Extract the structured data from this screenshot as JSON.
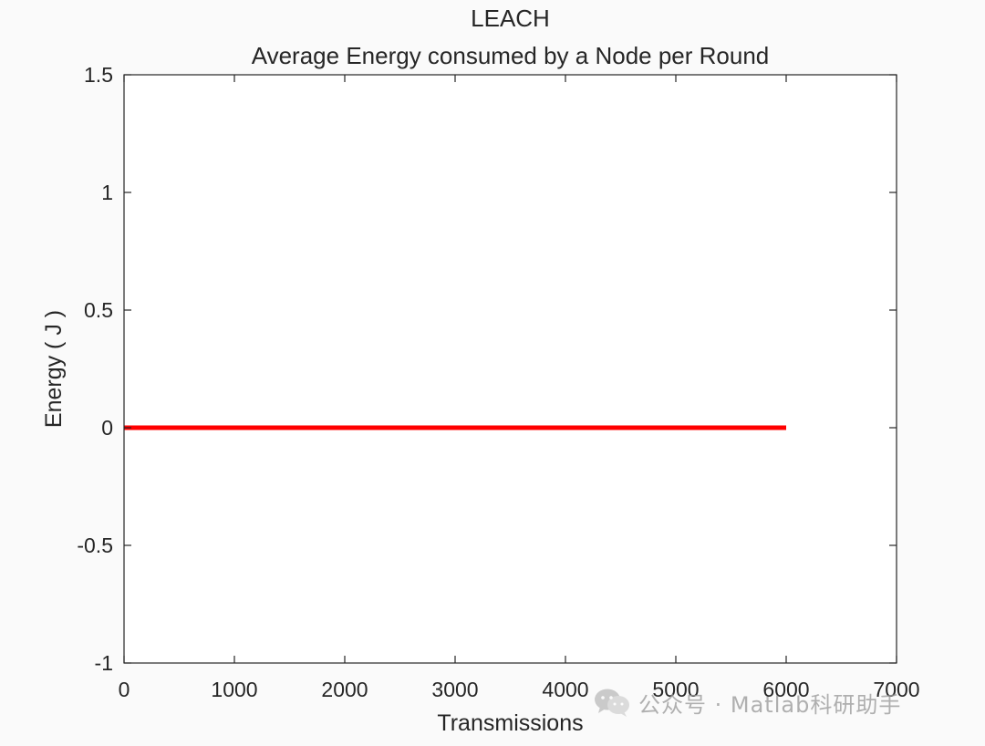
{
  "chart_data": {
    "type": "line",
    "title": "LEACH",
    "subtitle": "Average Energy consumed by a Node per Round",
    "xlabel": "Transmissions",
    "ylabel": "Energy ( J )",
    "xlim": [
      0,
      7000
    ],
    "ylim": [
      -1,
      1.5
    ],
    "x_ticks": [
      0,
      1000,
      2000,
      3000,
      4000,
      5000,
      6000,
      7000
    ],
    "y_ticks": [
      -1,
      -0.5,
      0,
      0.5,
      1,
      1.5
    ],
    "x_tick_labels": [
      "0",
      "1000",
      "2000",
      "3000",
      "4000",
      "5000",
      "6000",
      "7000"
    ],
    "y_tick_labels": [
      "-1",
      "-0.5",
      "0",
      "0.5",
      "1",
      "1.5"
    ],
    "grid": false,
    "series": [
      {
        "color": "#ff0000",
        "x": [
          0,
          1000,
          2000,
          3000,
          4000,
          5000,
          6000
        ],
        "y": [
          0,
          0,
          0,
          0,
          0,
          0,
          0
        ]
      }
    ]
  },
  "watermark": {
    "text": "公众号 · Matlab科研助手",
    "icon": "wechat-icon"
  }
}
